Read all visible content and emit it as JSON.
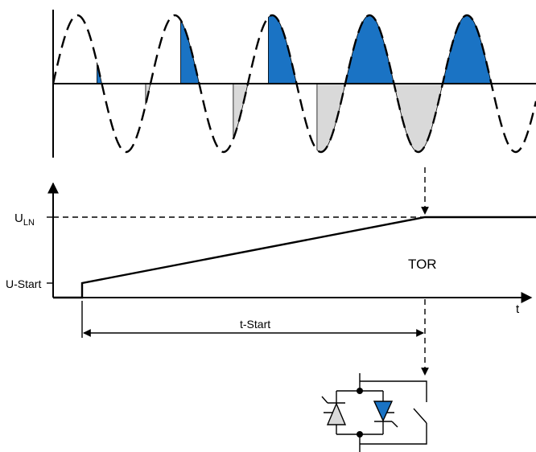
{
  "labels": {
    "u_ln_main": "U",
    "u_ln_sub": "LN",
    "u_start": "U-Start",
    "t_axis": "t",
    "tor": "TOR",
    "t_start": "t-Start"
  },
  "colors": {
    "positive_conduction": "#1a73c4",
    "negative_conduction": "#d9d9d9",
    "outline": "#000000"
  },
  "icons": {
    "thyristor_left": "thyristor-gray-icon",
    "thyristor_right": "thyristor-blue-icon",
    "bypass_contact": "switch-contact-icon"
  }
}
